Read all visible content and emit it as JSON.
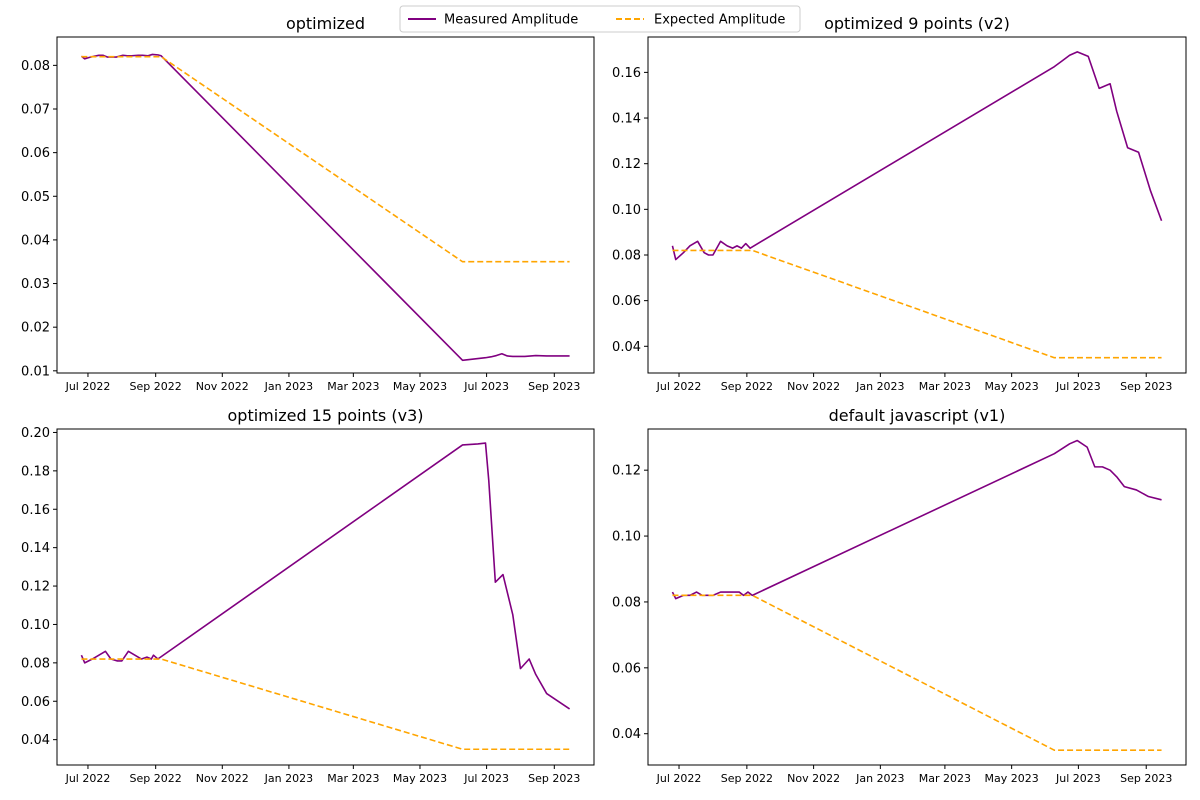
{
  "legend": {
    "entries": [
      {
        "label": "Measured Amplitude",
        "color": "#800080",
        "style": "solid"
      },
      {
        "label": "Expected Amplitude",
        "color": "#FFA500",
        "style": "dashed"
      }
    ],
    "placement": "top-center"
  },
  "chart_data": [
    {
      "type": "line",
      "title": "optimized",
      "xlabel": "",
      "ylabel": "",
      "x_ticks": [
        "Jul 2022",
        "Sep 2022",
        "Nov 2022",
        "Jan 2023",
        "Mar 2023",
        "May 2023",
        "Jul 2023",
        "Sep 2023"
      ],
      "y_ticks": [
        "0.01",
        "0.02",
        "0.03",
        "0.04",
        "0.05",
        "0.06",
        "0.07",
        "0.08"
      ],
      "ylim": [
        0.0095,
        0.0865
      ],
      "series": [
        {
          "name": "Measured Amplitude",
          "color": "#800080",
          "dashed": false,
          "x": [
            "2022-06-25",
            "2022-06-28",
            "2022-07-02",
            "2022-07-07",
            "2022-07-11",
            "2022-07-15",
            "2022-07-19",
            "2022-07-23",
            "2022-07-27",
            "2022-08-02",
            "2022-08-06",
            "2022-08-10",
            "2022-08-16",
            "2022-08-20",
            "2022-08-25",
            "2022-08-29",
            "2022-09-03",
            "2022-09-06",
            "2023-06-09",
            "2023-06-16",
            "2023-06-23",
            "2023-06-30",
            "2023-07-05",
            "2023-07-10",
            "2023-07-15",
            "2023-07-20",
            "2023-07-25",
            "2023-07-30",
            "2023-08-05",
            "2023-08-15",
            "2023-08-25",
            "2023-09-05",
            "2023-09-15"
          ],
          "y": [
            0.0821,
            0.0815,
            0.0818,
            0.0821,
            0.0823,
            0.0823,
            0.0819,
            0.0819,
            0.0819,
            0.0823,
            0.0822,
            0.0822,
            0.0823,
            0.0823,
            0.0822,
            0.0825,
            0.0824,
            0.0822,
            0.0124,
            0.0126,
            0.0128,
            0.013,
            0.0132,
            0.0135,
            0.0139,
            0.0134,
            0.0133,
            0.0133,
            0.0133,
            0.0135,
            0.0134,
            0.0134,
            0.0134
          ]
        },
        {
          "name": "Expected Amplitude",
          "color": "#FFA500",
          "dashed": true,
          "x": [
            "2022-06-25",
            "2022-07-05",
            "2022-07-15",
            "2022-07-25",
            "2022-08-05",
            "2022-08-15",
            "2022-08-25",
            "2022-09-06",
            "2023-06-09",
            "2023-06-23",
            "2023-07-09",
            "2023-07-23",
            "2023-08-09",
            "2023-08-23",
            "2023-09-15"
          ],
          "y": [
            0.082,
            0.082,
            0.082,
            0.082,
            0.082,
            0.082,
            0.082,
            0.082,
            0.035,
            0.035,
            0.035,
            0.035,
            0.035,
            0.035,
            0.035
          ]
        }
      ]
    },
    {
      "type": "line",
      "title": "optimized 9 points (v2)",
      "xlabel": "",
      "ylabel": "",
      "x_ticks": [
        "Jul 2022",
        "Sep 2022",
        "Nov 2022",
        "Jan 2023",
        "Mar 2023",
        "May 2023",
        "Jul 2023",
        "Sep 2023"
      ],
      "y_ticks": [
        "0.04",
        "0.06",
        "0.08",
        "0.10",
        "0.12",
        "0.14",
        "0.16"
      ],
      "ylim": [
        0.0283,
        0.1755
      ],
      "series": [
        {
          "name": "Measured Amplitude",
          "color": "#800080",
          "dashed": false,
          "x": [
            "2022-06-25",
            "2022-06-28",
            "2022-07-05",
            "2022-07-11",
            "2022-07-18",
            "2022-07-24",
            "2022-07-28",
            "2022-08-01",
            "2022-08-08",
            "2022-08-14",
            "2022-08-19",
            "2022-08-23",
            "2022-08-27",
            "2022-08-31",
            "2022-09-04",
            "2023-06-09",
            "2023-06-16",
            "2023-06-23",
            "2023-06-30",
            "2023-07-10",
            "2023-07-20",
            "2023-07-30",
            "2023-08-05",
            "2023-08-15",
            "2023-08-25",
            "2023-09-05",
            "2023-09-15"
          ],
          "y": [
            0.084,
            0.078,
            0.081,
            0.084,
            0.086,
            0.081,
            0.08,
            0.08,
            0.086,
            0.084,
            0.083,
            0.084,
            0.083,
            0.085,
            0.083,
            0.1625,
            0.165,
            0.1675,
            0.169,
            0.167,
            0.153,
            0.155,
            0.143,
            0.127,
            0.125,
            0.108,
            0.095
          ]
        },
        {
          "name": "Expected Amplitude",
          "color": "#FFA500",
          "dashed": true,
          "x": [
            "2022-06-25",
            "2022-07-05",
            "2022-07-15",
            "2022-07-25",
            "2022-08-05",
            "2022-08-15",
            "2022-08-25",
            "2022-09-06",
            "2023-06-09",
            "2023-06-23",
            "2023-07-09",
            "2023-07-23",
            "2023-08-09",
            "2023-08-23",
            "2023-09-15"
          ],
          "y": [
            0.082,
            0.082,
            0.082,
            0.082,
            0.082,
            0.082,
            0.082,
            0.082,
            0.035,
            0.035,
            0.035,
            0.035,
            0.035,
            0.035,
            0.035
          ]
        }
      ]
    },
    {
      "type": "line",
      "title": "optimized 15 points (v3)",
      "xlabel": "",
      "ylabel": "",
      "x_ticks": [
        "Jul 2022",
        "Sep 2022",
        "Nov 2022",
        "Jan 2023",
        "Mar 2023",
        "May 2023",
        "Jul 2023",
        "Sep 2023"
      ],
      "y_ticks": [
        "0.04",
        "0.06",
        "0.08",
        "0.10",
        "0.12",
        "0.14",
        "0.16",
        "0.18",
        "0.20"
      ],
      "ylim": [
        0.0268,
        0.2018
      ],
      "series": [
        {
          "name": "Measured Amplitude",
          "color": "#800080",
          "dashed": false,
          "x": [
            "2022-06-25",
            "2022-06-28",
            "2022-07-05",
            "2022-07-11",
            "2022-07-17",
            "2022-07-22",
            "2022-07-28",
            "2022-08-01",
            "2022-08-07",
            "2022-08-13",
            "2022-08-19",
            "2022-08-24",
            "2022-08-28",
            "2022-08-30",
            "2022-09-03",
            "2023-06-09",
            "2023-06-23",
            "2023-06-30",
            "2023-07-03",
            "2023-07-09",
            "2023-07-16",
            "2023-07-25",
            "2023-08-01",
            "2023-08-09",
            "2023-08-15",
            "2023-08-25",
            "2023-09-15"
          ],
          "y": [
            0.084,
            0.08,
            0.082,
            0.084,
            0.086,
            0.082,
            0.081,
            0.081,
            0.086,
            0.084,
            0.082,
            0.083,
            0.082,
            0.084,
            0.082,
            0.1935,
            0.194,
            0.1945,
            0.175,
            0.122,
            0.126,
            0.105,
            0.077,
            0.082,
            0.074,
            0.064,
            0.056
          ]
        },
        {
          "name": "Expected Amplitude",
          "color": "#FFA500",
          "dashed": true,
          "x": [
            "2022-06-25",
            "2022-07-05",
            "2022-07-15",
            "2022-07-25",
            "2022-08-05",
            "2022-08-15",
            "2022-08-25",
            "2022-09-06",
            "2023-06-09",
            "2023-06-23",
            "2023-07-09",
            "2023-07-23",
            "2023-08-09",
            "2023-08-23",
            "2023-09-15"
          ],
          "y": [
            0.082,
            0.082,
            0.082,
            0.082,
            0.082,
            0.082,
            0.082,
            0.082,
            0.035,
            0.035,
            0.035,
            0.035,
            0.035,
            0.035,
            0.035
          ]
        }
      ]
    },
    {
      "type": "line",
      "title": "default javascript (v1)",
      "xlabel": "",
      "ylabel": "",
      "x_ticks": [
        "Jul 2022",
        "Sep 2022",
        "Nov 2022",
        "Jan 2023",
        "Mar 2023",
        "May 2023",
        "Jul 2023",
        "Sep 2023"
      ],
      "y_ticks": [
        "0.04",
        "0.06",
        "0.08",
        "0.10",
        "0.12"
      ],
      "ylim": [
        0.0305,
        0.1325
      ],
      "series": [
        {
          "name": "Measured Amplitude",
          "color": "#800080",
          "dashed": false,
          "x": [
            "2022-06-25",
            "2022-06-28",
            "2022-07-05",
            "2022-07-11",
            "2022-07-17",
            "2022-07-22",
            "2022-07-28",
            "2022-08-01",
            "2022-08-08",
            "2022-08-14",
            "2022-08-20",
            "2022-08-25",
            "2022-08-29",
            "2022-09-02",
            "2022-09-06",
            "2023-06-09",
            "2023-06-23",
            "2023-06-30",
            "2023-07-09",
            "2023-07-16",
            "2023-07-23",
            "2023-07-30",
            "2023-08-05",
            "2023-08-12",
            "2023-08-23",
            "2023-09-03",
            "2023-09-15"
          ],
          "y": [
            0.083,
            0.081,
            0.082,
            0.082,
            0.083,
            0.082,
            0.082,
            0.082,
            0.083,
            0.083,
            0.083,
            0.083,
            0.082,
            0.083,
            0.082,
            0.125,
            0.128,
            0.129,
            0.127,
            0.121,
            0.121,
            0.12,
            0.118,
            0.115,
            0.114,
            0.112,
            0.111
          ]
        },
        {
          "name": "Expected Amplitude",
          "color": "#FFA500",
          "dashed": true,
          "x": [
            "2022-06-25",
            "2022-07-05",
            "2022-07-15",
            "2022-07-25",
            "2022-08-05",
            "2022-08-15",
            "2022-08-25",
            "2022-09-06",
            "2023-06-09",
            "2023-06-23",
            "2023-07-09",
            "2023-07-23",
            "2023-08-09",
            "2023-08-23",
            "2023-09-15"
          ],
          "y": [
            0.082,
            0.082,
            0.082,
            0.082,
            0.082,
            0.082,
            0.082,
            0.082,
            0.035,
            0.035,
            0.035,
            0.035,
            0.035,
            0.035,
            0.035
          ]
        }
      ]
    }
  ]
}
